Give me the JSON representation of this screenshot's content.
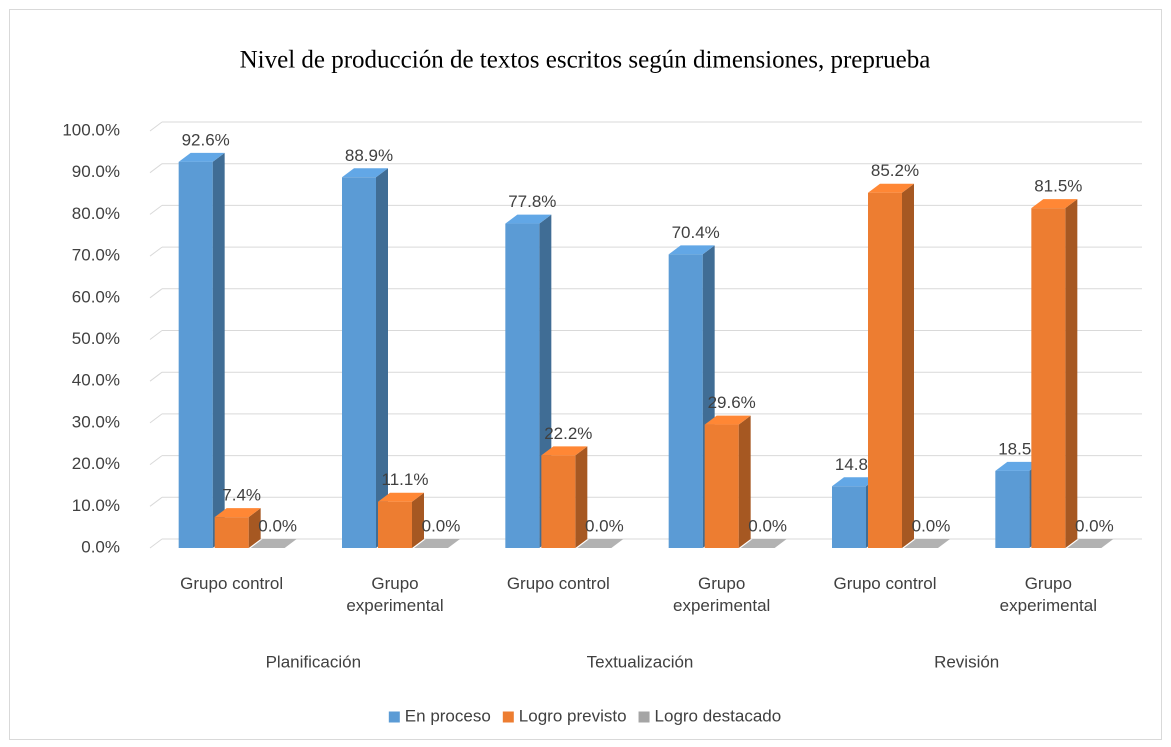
{
  "chart_data": {
    "type": "bar3d",
    "title": "Nivel de producción de textos escritos según dimensiones, preprueba",
    "groups": [
      {
        "name": "Planificación",
        "categories": [
          "Grupo control",
          "Grupo experimental"
        ]
      },
      {
        "name": "Textualización",
        "categories": [
          "Grupo control",
          "Grupo experimental"
        ]
      },
      {
        "name": "Revisión",
        "categories": [
          "Grupo control",
          "Grupo experimental"
        ]
      }
    ],
    "series": [
      {
        "name": "En proceso",
        "color": "#5b9bd5",
        "values": [
          92.6,
          88.9,
          77.8,
          70.4,
          14.8,
          18.5
        ],
        "value_labels": [
          "92.6%",
          "88.9%",
          "77.8%",
          "70.4%",
          "14.8%",
          "18.5%"
        ]
      },
      {
        "name": "Logro previsto",
        "color": "#ed7d31",
        "values": [
          7.4,
          11.1,
          22.2,
          29.6,
          85.2,
          81.5
        ],
        "value_labels": [
          "7.4%",
          "11.1%",
          "22.2%",
          "29.6%",
          "85.2%",
          "81.5%"
        ]
      },
      {
        "name": "Logro destacado",
        "color": "#a5a5a5",
        "values": [
          0,
          0,
          0,
          0,
          0,
          0
        ],
        "value_labels": [
          "0.0%",
          "0.0%",
          "0.0%",
          "0.0%",
          "0.0%",
          "0.0%"
        ]
      }
    ],
    "ylim": [
      0,
      100
    ],
    "yticks": [
      {
        "value": 0,
        "label": "0.0%"
      },
      {
        "value": 10,
        "label": "10.0%"
      },
      {
        "value": 20,
        "label": "20.0%"
      },
      {
        "value": 30,
        "label": "30.0%"
      },
      {
        "value": 40,
        "label": "40.0%"
      },
      {
        "value": 50,
        "label": "50.0%"
      },
      {
        "value": 60,
        "label": "60.0%"
      },
      {
        "value": 70,
        "label": "70.0%"
      },
      {
        "value": 80,
        "label": "80.0%"
      },
      {
        "value": 90,
        "label": "90.0%"
      },
      {
        "value": 100,
        "label": "100.0%"
      }
    ],
    "grid": true,
    "legend": "bottom"
  }
}
